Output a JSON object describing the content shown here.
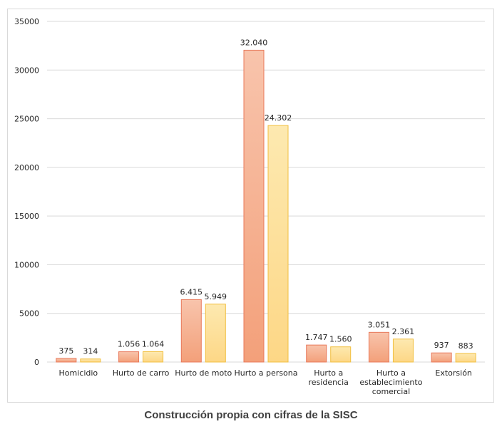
{
  "chart_data": {
    "type": "bar",
    "categories": [
      [
        "Homicidio"
      ],
      [
        "Hurto de carro"
      ],
      [
        "Hurto de moto"
      ],
      [
        "Hurto a persona"
      ],
      [
        "Hurto a",
        "residencia"
      ],
      [
        "Hurto a",
        "establecimiento",
        "comercial"
      ],
      [
        "Extorsión"
      ]
    ],
    "series": [
      {
        "color_top": "#f8c4ac",
        "color_bottom": "#f3a07a",
        "stroke": "#e8785a",
        "values": [
          375,
          1056,
          6415,
          32040,
          1747,
          3051,
          937
        ],
        "labels": [
          "375",
          "1.056",
          "6.415",
          "32.040",
          "1.747",
          "3.051",
          "937"
        ]
      },
      {
        "color_top": "#fde9b0",
        "color_bottom": "#fdd786",
        "stroke": "#f2bf3f",
        "values": [
          314,
          1064,
          5949,
          24302,
          1560,
          2361,
          883
        ],
        "labels": [
          "314",
          "1.064",
          "5.949",
          "24.302",
          "1.560",
          "2.361",
          "883"
        ]
      }
    ],
    "y_ticks": [
      "0",
      "5000",
      "10000",
      "15000",
      "20000",
      "25000",
      "30000",
      "35000"
    ],
    "ylim": [
      0,
      35000
    ],
    "grid": true,
    "gridline_color": "#d9d9d9"
  },
  "caption": "Construcción propia con cifras de la SISC"
}
